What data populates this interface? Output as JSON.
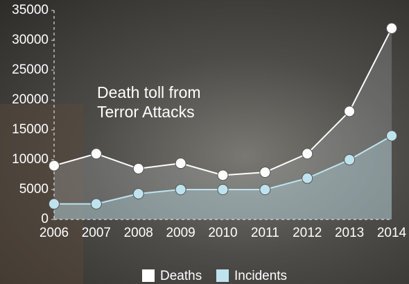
{
  "chart_data": {
    "type": "line",
    "title": "Death toll from Terror Attacks",
    "categories": [
      "2006",
      "2007",
      "2008",
      "2009",
      "2010",
      "2011",
      "2012",
      "2013",
      "2014"
    ],
    "series": [
      {
        "name": "Deaths",
        "color": "#ffffff",
        "values": [
          9000,
          11000,
          8500,
          9400,
          7400,
          7900,
          11000,
          18100,
          32000
        ]
      },
      {
        "name": "Incidents",
        "color": "#bfe3ee",
        "values": [
          2600,
          2600,
          4300,
          5000,
          5000,
          5000,
          6900,
          10000,
          14000
        ]
      }
    ],
    "ylim": [
      0,
      35000
    ],
    "yticks": [
      0,
      5000,
      10000,
      15000,
      20000,
      25000,
      30000,
      35000
    ],
    "legend": "bottom"
  }
}
